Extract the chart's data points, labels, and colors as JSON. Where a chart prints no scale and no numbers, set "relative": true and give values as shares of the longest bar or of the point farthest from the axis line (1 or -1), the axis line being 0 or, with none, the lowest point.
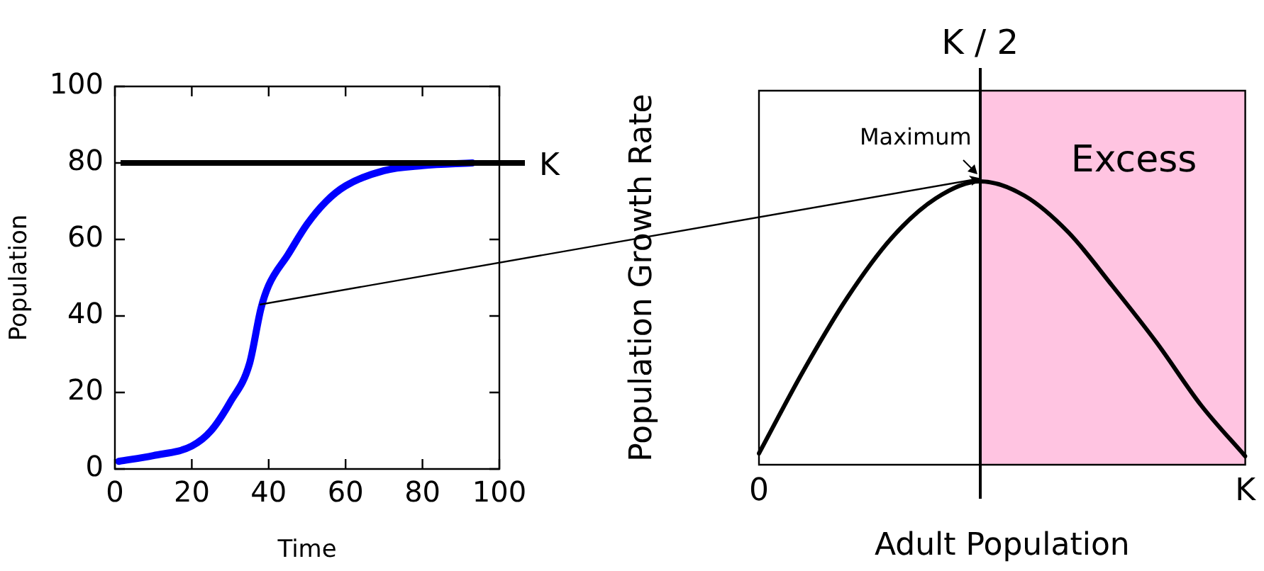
{
  "chart_data": [
    {
      "type": "line",
      "xlabel": "Time",
      "ylabel": "Population",
      "x": [
        1,
        10,
        20,
        25,
        30,
        35,
        38,
        40,
        45,
        50,
        55,
        60,
        70,
        80,
        93
      ],
      "series": [
        {
          "color": "#0000ff",
          "values": [
            2,
            3.5,
            6,
            10,
            17.5,
            27.5,
            42,
            48,
            56,
            64,
            70,
            74,
            78,
            79.3,
            80
          ]
        }
      ],
      "xlim": [
        0,
        100
      ],
      "ylim": [
        0,
        100
      ],
      "xticks": [
        0,
        20,
        40,
        60,
        80,
        100
      ],
      "yticks": [
        0,
        20,
        40,
        60,
        80,
        100
      ],
      "ref_lines": [
        {
          "axis": "y",
          "value": 80,
          "label": "K",
          "color": "#000000"
        }
      ],
      "grid": false,
      "legend": false,
      "marker": "none"
    },
    {
      "type": "line",
      "xlabel": "Adult Population",
      "ylabel": "Population Growth Rate",
      "relative": true,
      "categories": [
        "0",
        null,
        null,
        null,
        null,
        null,
        null,
        null,
        null,
        null,
        null,
        "K"
      ],
      "series": [
        {
          "color": "#000000",
          "values": [
            0.04,
            0.33,
            0.59,
            0.8,
            0.94,
            1,
            0.95,
            0.82,
            0.63,
            0.43,
            0.21,
            0.03
          ]
        }
      ],
      "annotations": [
        "K / 2",
        "Maximum",
        "Excess"
      ],
      "grid": false,
      "legend": false,
      "marker": "none"
    }
  ]
}
